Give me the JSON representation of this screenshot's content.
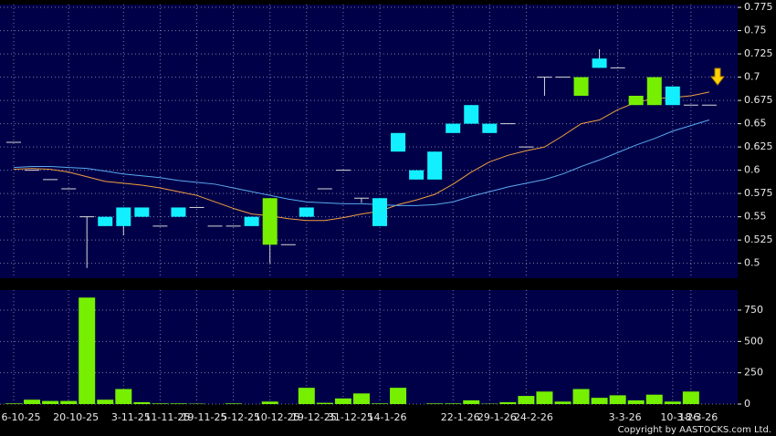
{
  "chart_data": [
    {
      "type": "candlestick",
      "categories": [
        "6-10-25",
        null,
        null,
        "20-10-25",
        null,
        null,
        "3-11-25",
        null,
        "11-11-25",
        null,
        "19-11-25",
        null,
        "5-12-25",
        null,
        "10-12-25",
        null,
        "19-12-25",
        null,
        "31-12-25",
        null,
        "14-1-26",
        null,
        null,
        null,
        "22-1-26",
        null,
        "29-1-26",
        null,
        "24-2-26",
        null,
        null,
        null,
        null,
        "3-3-26",
        null,
        null,
        "10-3-26",
        "18-3-26",
        null
      ],
      "open": [
        0.63,
        0.6,
        0.59,
        0.58,
        0.55,
        0.55,
        0.56,
        0.56,
        0.54,
        0.56,
        0.56,
        0.54,
        0.54,
        0.55,
        0.52,
        0.52,
        0.56,
        0.58,
        0.6,
        0.57,
        0.57,
        0.64,
        0.6,
        0.62,
        0.65,
        0.67,
        0.65,
        0.65,
        0.625,
        0.7,
        0.7,
        0.68,
        0.72,
        0.71,
        0.67,
        0.67,
        0.69,
        0.67,
        0.67
      ],
      "high": [
        0.63,
        0.6,
        0.59,
        0.58,
        0.55,
        0.55,
        0.56,
        0.56,
        0.54,
        0.56,
        0.56,
        0.54,
        0.54,
        0.55,
        0.57,
        0.52,
        0.56,
        0.58,
        0.6,
        0.57,
        0.57,
        0.64,
        0.6,
        0.62,
        0.65,
        0.67,
        0.65,
        0.65,
        0.625,
        0.7,
        0.7,
        0.7,
        0.73,
        0.71,
        0.68,
        0.7,
        0.69,
        0.67,
        0.67
      ],
      "low": [
        0.63,
        0.6,
        0.59,
        0.58,
        0.495,
        0.54,
        0.53,
        0.55,
        0.54,
        0.55,
        0.56,
        0.54,
        0.54,
        0.54,
        0.5,
        0.52,
        0.55,
        0.58,
        0.6,
        0.565,
        0.54,
        0.62,
        0.59,
        0.59,
        0.64,
        0.65,
        0.64,
        0.65,
        0.625,
        0.68,
        0.7,
        0.68,
        0.71,
        0.71,
        0.67,
        0.67,
        0.67,
        0.67,
        0.67
      ],
      "close": [
        0.63,
        0.6,
        0.59,
        0.58,
        0.55,
        0.54,
        0.54,
        0.55,
        0.54,
        0.55,
        0.56,
        0.54,
        0.54,
        0.54,
        0.57,
        0.52,
        0.55,
        0.58,
        0.6,
        0.57,
        0.54,
        0.62,
        0.59,
        0.59,
        0.64,
        0.65,
        0.64,
        0.65,
        0.625,
        0.7,
        0.7,
        0.7,
        0.71,
        0.71,
        0.68,
        0.7,
        0.67,
        0.67,
        0.67
      ],
      "up_color": "#76f000",
      "down_color": "#12f0ff",
      "flat_color": "#d8d8d8",
      "series": [
        {
          "color": "#f0a040",
          "values": [
            0.601,
            0.602,
            0.601,
            0.598,
            0.593,
            0.588,
            0.586,
            0.584,
            0.581,
            0.577,
            0.573,
            0.566,
            0.559,
            0.553,
            0.551,
            0.548,
            0.546,
            0.546,
            0.549,
            0.553,
            0.556,
            0.563,
            0.568,
            0.574,
            0.585,
            0.598,
            0.609,
            0.616,
            0.621,
            0.625,
            0.637,
            0.65,
            0.654,
            0.665,
            0.673,
            0.677,
            0.678,
            0.68,
            0.684
          ]
        },
        {
          "color": "#5aaaf0",
          "values": [
            0.603,
            0.604,
            0.604,
            0.603,
            0.602,
            0.599,
            0.596,
            0.594,
            0.592,
            0.589,
            0.587,
            0.585,
            0.581,
            0.577,
            0.573,
            0.569,
            0.566,
            0.565,
            0.564,
            0.564,
            0.563,
            0.562,
            0.562,
            0.563,
            0.566,
            0.572,
            0.577,
            0.582,
            0.586,
            0.59,
            0.596,
            0.604,
            0.611,
            0.619,
            0.627,
            0.634,
            0.642,
            0.648,
            0.654
          ]
        }
      ],
      "ylim": [
        0.484,
        0.778
      ],
      "yticks": [
        0.5,
        0.525,
        0.55,
        0.575,
        0.6,
        0.625,
        0.65,
        0.675,
        0.7,
        0.725,
        0.75,
        0.775
      ],
      "grid": true
    },
    {
      "type": "bar",
      "values": [
        5,
        35,
        25,
        25,
        850,
        35,
        120,
        15,
        5,
        5,
        3,
        0,
        5,
        0,
        20,
        0,
        130,
        10,
        45,
        85,
        5,
        130,
        0,
        5,
        5,
        30,
        3,
        15,
        65,
        100,
        20,
        120,
        50,
        70,
        30,
        75,
        20,
        100,
        0
      ],
      "color": "#76f000",
      "ylim": [
        0,
        910
      ],
      "yticks": [
        0,
        250,
        500,
        750
      ],
      "grid": true
    }
  ],
  "copyright": "Copyright by AASTOCKS.com Ltd."
}
